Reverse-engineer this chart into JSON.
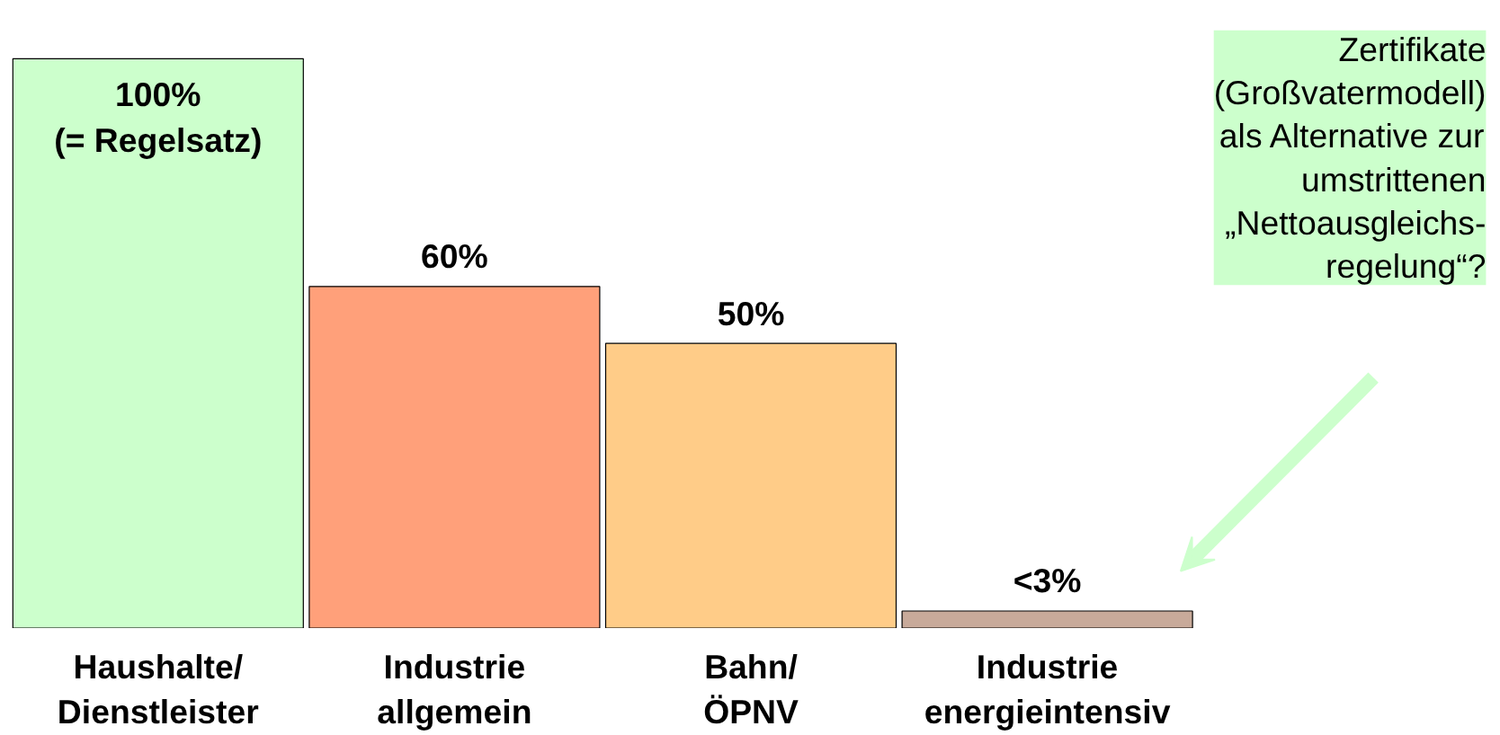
{
  "chart_data": {
    "type": "bar",
    "tick_labels": "x",
    "categories": [
      "Haushalte/\nDienstleister",
      "Industrie\nallgemein",
      "Bahn/\nÖPNV",
      "Industrie\nenergieintensiv"
    ],
    "values": [
      100,
      60,
      50,
      3
    ],
    "colors": [
      "#ccffcc",
      "#ffa07a",
      "#ffcc88",
      "#c8aa9a"
    ],
    "value_labels": [
      "100%\n(= Regelsatz)",
      "60%",
      "50%",
      "<3%"
    ],
    "annotations": [
      "Zertifikate\n(Großvatermodell)\nals Alternative zur\numstrittenen\n„Nettoausgleichs-\nregelung“?"
    ],
    "grid": false
  }
}
